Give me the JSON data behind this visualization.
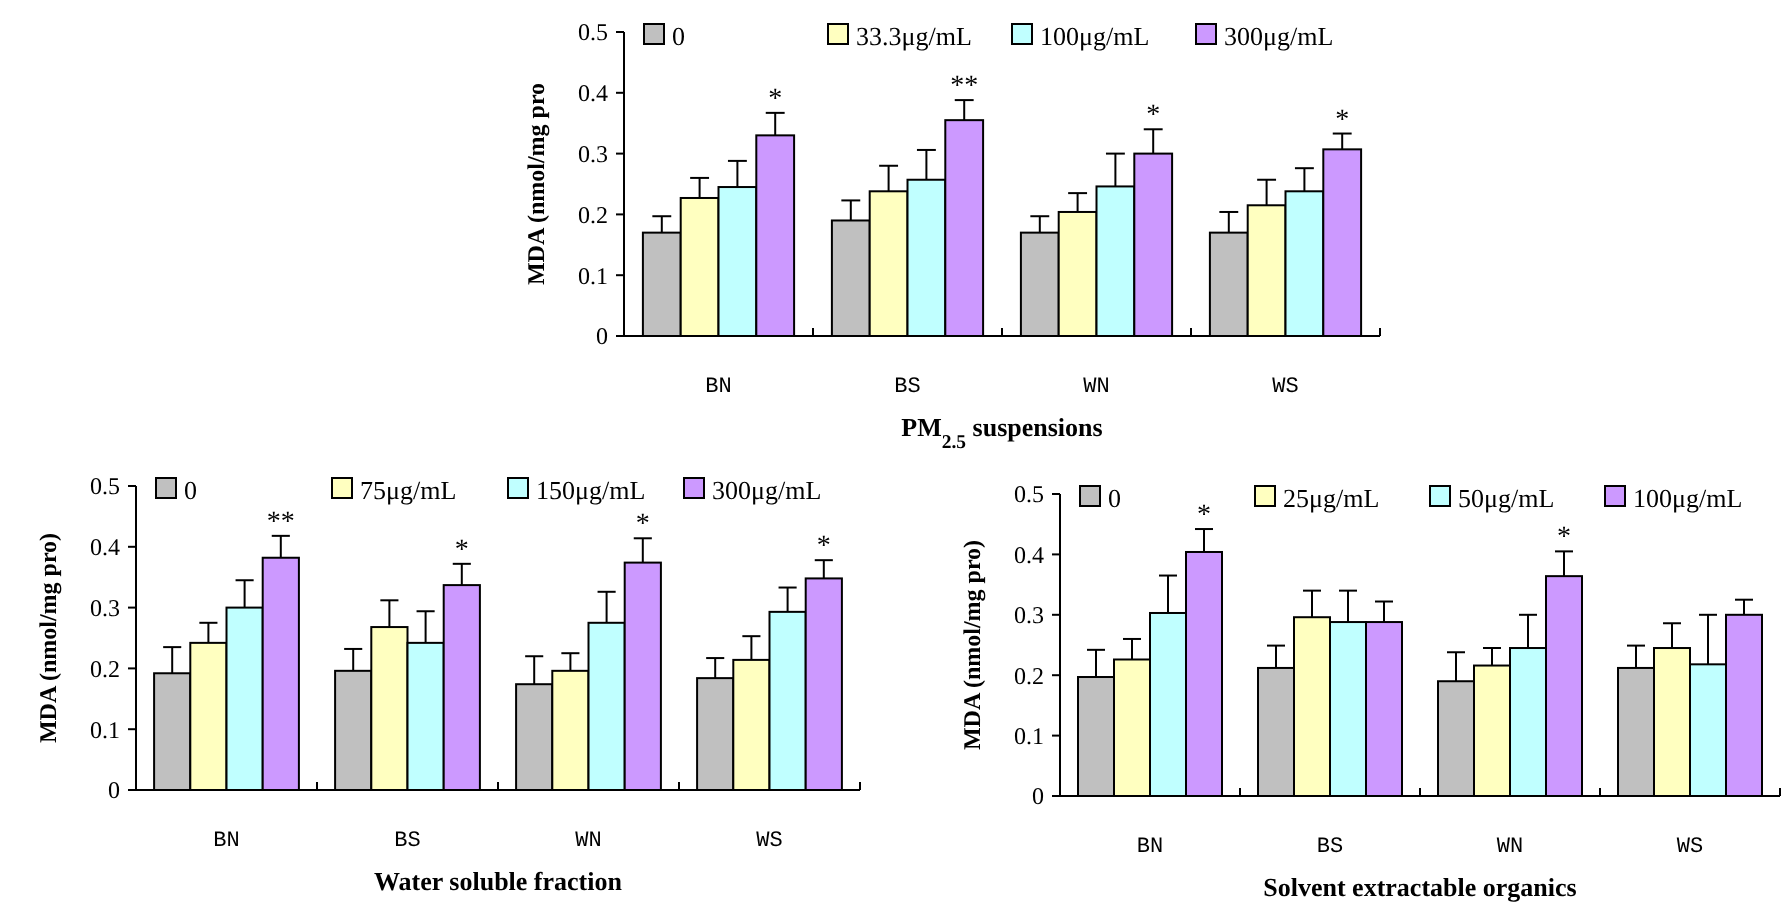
{
  "chart_data": [
    {
      "type": "bar",
      "xlabel": "PM$_{2.5}$ suspensions",
      "ylabel": "MDA (nmol/mg pro",
      "categories": [
        "BN",
        "BS",
        "WN",
        "WS"
      ],
      "ylim": [
        0,
        0.5
      ],
      "yticks": [
        0,
        0.1,
        0.2,
        0.3,
        0.4,
        0.5
      ],
      "legend": "top",
      "grid": false,
      "series": [
        {
          "name": "0",
          "color": "#c0c0c0",
          "values": [
            0.17,
            0.19,
            0.17,
            0.17
          ],
          "errors": [
            [
              0.17,
              0.197
            ],
            [
              0.19,
              0.223
            ],
            [
              0.17,
              0.197
            ],
            [
              0.17,
              0.204
            ]
          ]
        },
        {
          "name": "33.3μg/mL",
          "color": "#ffffc0",
          "values": [
            0.227,
            0.238,
            0.204,
            0.215
          ],
          "errors": [
            [
              0.227,
              0.26
            ],
            [
              0.238,
              0.28
            ],
            [
              0.204,
              0.235
            ],
            [
              0.215,
              0.257
            ]
          ]
        },
        {
          "name": "100μg/mL",
          "color": "#c0ffff",
          "values": [
            0.245,
            0.257,
            0.246,
            0.238
          ],
          "errors": [
            [
              0.245,
              0.288
            ],
            [
              0.257,
              0.306
            ],
            [
              0.246,
              0.3
            ],
            [
              0.238,
              0.276
            ]
          ]
        },
        {
          "name": "300μg/mL",
          "color": "#cc99ff",
          "values": [
            0.33,
            0.355,
            0.3,
            0.307
          ],
          "errors": [
            [
              0.33,
              0.367
            ],
            [
              0.355,
              0.388
            ],
            [
              0.3,
              0.34
            ],
            [
              0.307,
              0.333
            ]
          ],
          "value_labels": [
            "*",
            "**",
            "*",
            "*"
          ]
        }
      ]
    },
    {
      "type": "bar",
      "xlabel": "Water soluble fraction",
      "ylabel": "MDA (nmol/mg pro)",
      "categories": [
        "BN",
        "BS",
        "WN",
        "WS"
      ],
      "ylim": [
        0,
        0.5
      ],
      "yticks": [
        0,
        0.1,
        0.2,
        0.3,
        0.4,
        0.5
      ],
      "legend": "top",
      "grid": false,
      "series": [
        {
          "name": "0",
          "color": "#c0c0c0",
          "values": [
            0.192,
            0.196,
            0.174,
            0.184
          ],
          "errors": [
            [
              0.192,
              0.235
            ],
            [
              0.196,
              0.232
            ],
            [
              0.174,
              0.22
            ],
            [
              0.184,
              0.217
            ]
          ]
        },
        {
          "name": "75μg/mL",
          "color": "#ffffc0",
          "values": [
            0.242,
            0.268,
            0.196,
            0.214
          ],
          "errors": [
            [
              0.242,
              0.275
            ],
            [
              0.268,
              0.312
            ],
            [
              0.196,
              0.225
            ],
            [
              0.214,
              0.253
            ]
          ]
        },
        {
          "name": "150μg/mL",
          "color": "#c0ffff",
          "values": [
            0.3,
            0.242,
            0.275,
            0.293
          ],
          "errors": [
            [
              0.3,
              0.345
            ],
            [
              0.242,
              0.294
            ],
            [
              0.275,
              0.326
            ],
            [
              0.293,
              0.333
            ]
          ]
        },
        {
          "name": "300μg/mL",
          "color": "#cc99ff",
          "values": [
            0.382,
            0.337,
            0.374,
            0.348
          ],
          "errors": [
            [
              0.382,
              0.418
            ],
            [
              0.337,
              0.372
            ],
            [
              0.374,
              0.414
            ],
            [
              0.348,
              0.378
            ]
          ],
          "value_labels": [
            "**",
            "*",
            "*",
            "*"
          ]
        }
      ]
    },
    {
      "type": "bar",
      "xlabel": "Solvent extractable organics",
      "ylabel": "MDA (nmol/mg pro)",
      "categories": [
        "BN",
        "BS",
        "WN",
        "WS"
      ],
      "ylim": [
        0,
        0.5
      ],
      "yticks": [
        0,
        0.1,
        0.2,
        0.3,
        0.4,
        0.5
      ],
      "legend": "top",
      "grid": false,
      "series": [
        {
          "name": "0",
          "color": "#c0c0c0",
          "values": [
            0.197,
            0.212,
            0.19,
            0.212
          ],
          "errors": [
            [
              0.197,
              0.242
            ],
            [
              0.212,
              0.249
            ],
            [
              0.19,
              0.238
            ],
            [
              0.212,
              0.249
            ]
          ]
        },
        {
          "name": "25μg/mL",
          "color": "#ffffc0",
          "values": [
            0.226,
            0.296,
            0.216,
            0.245
          ],
          "errors": [
            [
              0.226,
              0.26
            ],
            [
              0.296,
              0.34
            ],
            [
              0.216,
              0.245
            ],
            [
              0.245,
              0.286
            ]
          ]
        },
        {
          "name": "50μg/mL",
          "color": "#c0ffff",
          "values": [
            0.303,
            0.288,
            0.245,
            0.218
          ],
          "errors": [
            [
              0.303,
              0.365
            ],
            [
              0.288,
              0.34
            ],
            [
              0.245,
              0.3
            ],
            [
              0.218,
              0.3
            ]
          ]
        },
        {
          "name": "100μg/mL",
          "color": "#cc99ff",
          "values": [
            0.404,
            0.288,
            0.364,
            0.3
          ],
          "errors": [
            [
              0.404,
              0.442
            ],
            [
              0.288,
              0.322
            ],
            [
              0.364,
              0.405
            ],
            [
              0.3,
              0.325
            ]
          ],
          "value_labels": [
            "*",
            null,
            "*",
            null
          ]
        }
      ]
    }
  ]
}
